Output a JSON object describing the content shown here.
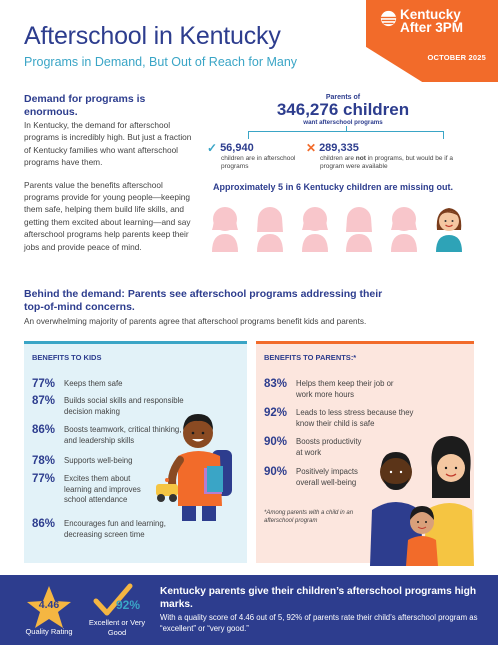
{
  "brand": {
    "logo_line1": "Kentucky",
    "logo_line2": "After 3PM",
    "date": "OCTOBER 2025",
    "accent_orange": "#f26b2a",
    "accent_blue": "#3aa5c6",
    "navy": "#2d3d8e"
  },
  "header": {
    "title": "Afterschool in Kentucky",
    "subtitle": "Programs in Demand, But Out of Reach for Many"
  },
  "demand": {
    "heading": "Demand for programs is enormous.",
    "para1": "In Kentucky, the demand for afterschool programs is incredibly high. But just a fraction of Kentucky families who want afterschool programs have them.",
    "para2": "Parents value the benefits afterschool programs provide for young people—keeping them safe, helping them build life skills, and getting them excited about learning—and say afterschool programs help parents keep their jobs and provide peace of mind."
  },
  "stats": {
    "parents_of": "Parents of",
    "children_total": "346,276 children",
    "want_label": "want afterschool programs",
    "in_programs_num": "56,940",
    "in_programs_note": "children are in afterschool programs",
    "not_in_num": "289,335",
    "not_in_note_a": "children are",
    "not_in_note_b": "not",
    "not_in_note_c": "in programs, but would be if a program were available",
    "missing_out": "Approximately 5 in 6 Kentucky children are missing out."
  },
  "behind": {
    "heading": "Behind the demand: Parents see afterschool programs addressing their top-of-mind concerns.",
    "sub": "An overwhelming majority of parents agree that afterschool programs benefit kids and parents."
  },
  "kids_benefits": {
    "heading": "BENEFITS TO KIDS",
    "items": [
      {
        "pct": "77%",
        "text": "Keeps them safe"
      },
      {
        "pct": "87%",
        "text": "Builds social skills and responsible decision making"
      },
      {
        "pct": "86%",
        "text": "Boosts teamwork, critical thinking, and leadership skills"
      },
      {
        "pct": "78%",
        "text": "Supports well-being"
      },
      {
        "pct": "77%",
        "text": "Excites them about learning and improves school attendance"
      },
      {
        "pct": "86%",
        "text": "Encourages fun and learning, decreasing screen time"
      }
    ]
  },
  "parent_benefits": {
    "heading": "BENEFITS TO PARENTS:*",
    "items": [
      {
        "pct": "83%",
        "text": "Helps them keep their job or work more hours"
      },
      {
        "pct": "92%",
        "text": "Leads to less stress because they know their child is safe"
      },
      {
        "pct": "90%",
        "text": "Boosts productivity at work"
      },
      {
        "pct": "90%",
        "text": "Positively impacts overall well-being"
      }
    ],
    "footnote": "*Among parents with a child in an afterschool program"
  },
  "banner": {
    "rating_value": "4.46",
    "rating_label": "Quality Rating",
    "excellent_pct": "92%",
    "excellent_label": "Excellent or Very Good",
    "heading": "Kentucky parents give their children’s afterschool programs high marks.",
    "text": "With a quality score of 4.46 out of 5, 92% of parents rate their child’s afterschool program as “excellent” or “very good.”"
  }
}
